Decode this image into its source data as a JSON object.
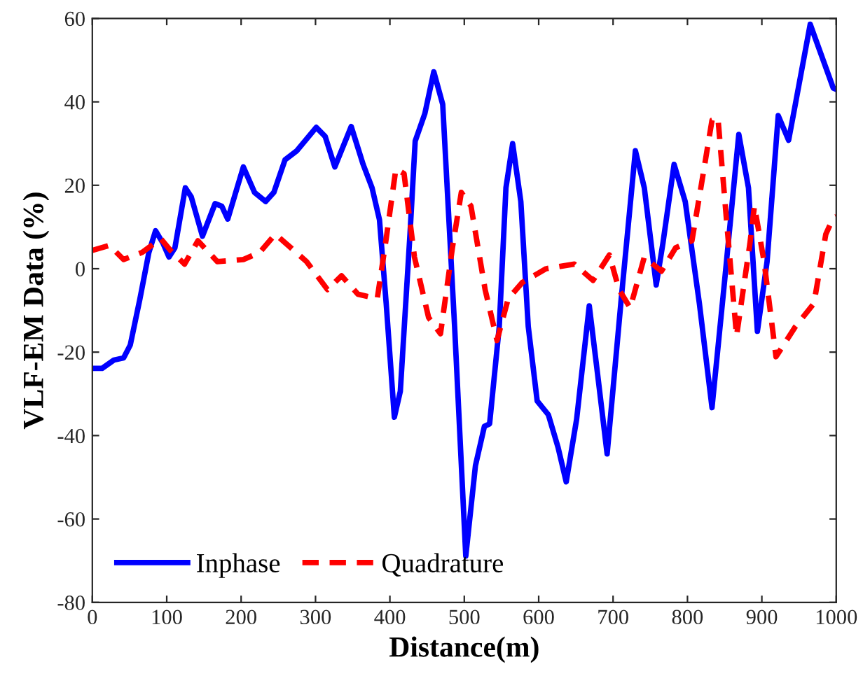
{
  "chart_data": {
    "type": "line",
    "xlabel": "Distance(m)",
    "ylabel": "VLF-EM Data (%)",
    "xlim": [
      0,
      1000
    ],
    "ylim": [
      -80,
      60
    ],
    "xticks": [
      0,
      100,
      200,
      300,
      400,
      500,
      600,
      700,
      800,
      900,
      1000
    ],
    "yticks": [
      -80,
      -60,
      -40,
      -20,
      0,
      20,
      40,
      60
    ],
    "grid": false,
    "legend": "bottom left",
    "series": [
      {
        "name": "Inphase",
        "color": "#0000ff",
        "line_style": "solid",
        "x": [
          0,
          13,
          29,
          42,
          51,
          64,
          76,
          85,
          95,
          103,
          111,
          125,
          133,
          148,
          165,
          174,
          182,
          203,
          218,
          233,
          244,
          259,
          275,
          301,
          313,
          326,
          348,
          364,
          376,
          386,
          395,
          406,
          414,
          427,
          434,
          447,
          459,
          471,
          487,
          502,
          515,
          527,
          534,
          547,
          556,
          565,
          576,
          586,
          598,
          613,
          626,
          637,
          651,
          668,
          679,
          692,
          711,
          730,
          742,
          758,
          767,
          782,
          797,
          816,
          833,
          850,
          869,
          882,
          894,
          907,
          922,
          936,
          945,
          965,
          979,
          996,
          1000
        ],
        "values": [
          -23.9,
          -23.9,
          -21.9,
          -21.4,
          -18.3,
          -7.2,
          3.9,
          9.1,
          6.1,
          2.8,
          5,
          19.4,
          17.2,
          7.8,
          15.6,
          15,
          11.9,
          24.4,
          18.3,
          16.1,
          18.3,
          26.1,
          28.3,
          33.9,
          31.7,
          24.4,
          34.1,
          25,
          19.4,
          11.7,
          -8.3,
          -35.6,
          -29.4,
          8.3,
          30.6,
          37.2,
          47.2,
          39.4,
          -13.9,
          -68.9,
          -47.2,
          -37.8,
          -37.2,
          -13.9,
          19.4,
          30,
          16.1,
          -13.9,
          -31.7,
          -35,
          -42.8,
          -51.1,
          -36.1,
          -8.9,
          -25,
          -44.4,
          -7.2,
          28.3,
          19.4,
          -3.9,
          6.1,
          25,
          16.1,
          -8.3,
          -33.3,
          -2.8,
          32.2,
          19.4,
          -15,
          1.7,
          36.7,
          30.8,
          39.4,
          58.6,
          51.7,
          43.3,
          43
        ]
      },
      {
        "name": "Quadrature",
        "color": "#ff0000",
        "line_style": "dashed",
        "x": [
          0,
          23,
          42,
          67,
          92,
          105,
          124,
          142,
          168,
          203,
          225,
          246,
          288,
          316,
          335,
          357,
          383,
          395,
          408,
          419,
          433,
          452,
          468,
          484,
          496,
          509,
          528,
          544,
          559,
          578,
          610,
          648,
          673,
          695,
          708,
          723,
          742,
          765,
          784,
          806,
          818,
          833,
          841,
          853,
          866,
          884,
          890,
          903,
          919,
          945,
          970,
          986,
          996,
          1000
        ],
        "values": [
          4.4,
          5.6,
          2.2,
          3.9,
          7.2,
          4.4,
          1.1,
          6.7,
          1.7,
          2.2,
          3.9,
          8.3,
          1.7,
          -5,
          -1.7,
          -6.1,
          -7.2,
          7.2,
          23.9,
          22.8,
          2.8,
          -11.7,
          -15.6,
          5,
          18.3,
          15,
          -5,
          -17.2,
          -7.2,
          -3.3,
          0,
          1.1,
          -2.8,
          3.3,
          -5,
          -9.4,
          2.8,
          -0.6,
          5,
          6.7,
          19.4,
          35.6,
          36.1,
          10.6,
          -16.1,
          6.1,
          15,
          1.7,
          -21.1,
          -13.9,
          -8.3,
          8.3,
          12.2,
          12.5
        ]
      }
    ]
  }
}
